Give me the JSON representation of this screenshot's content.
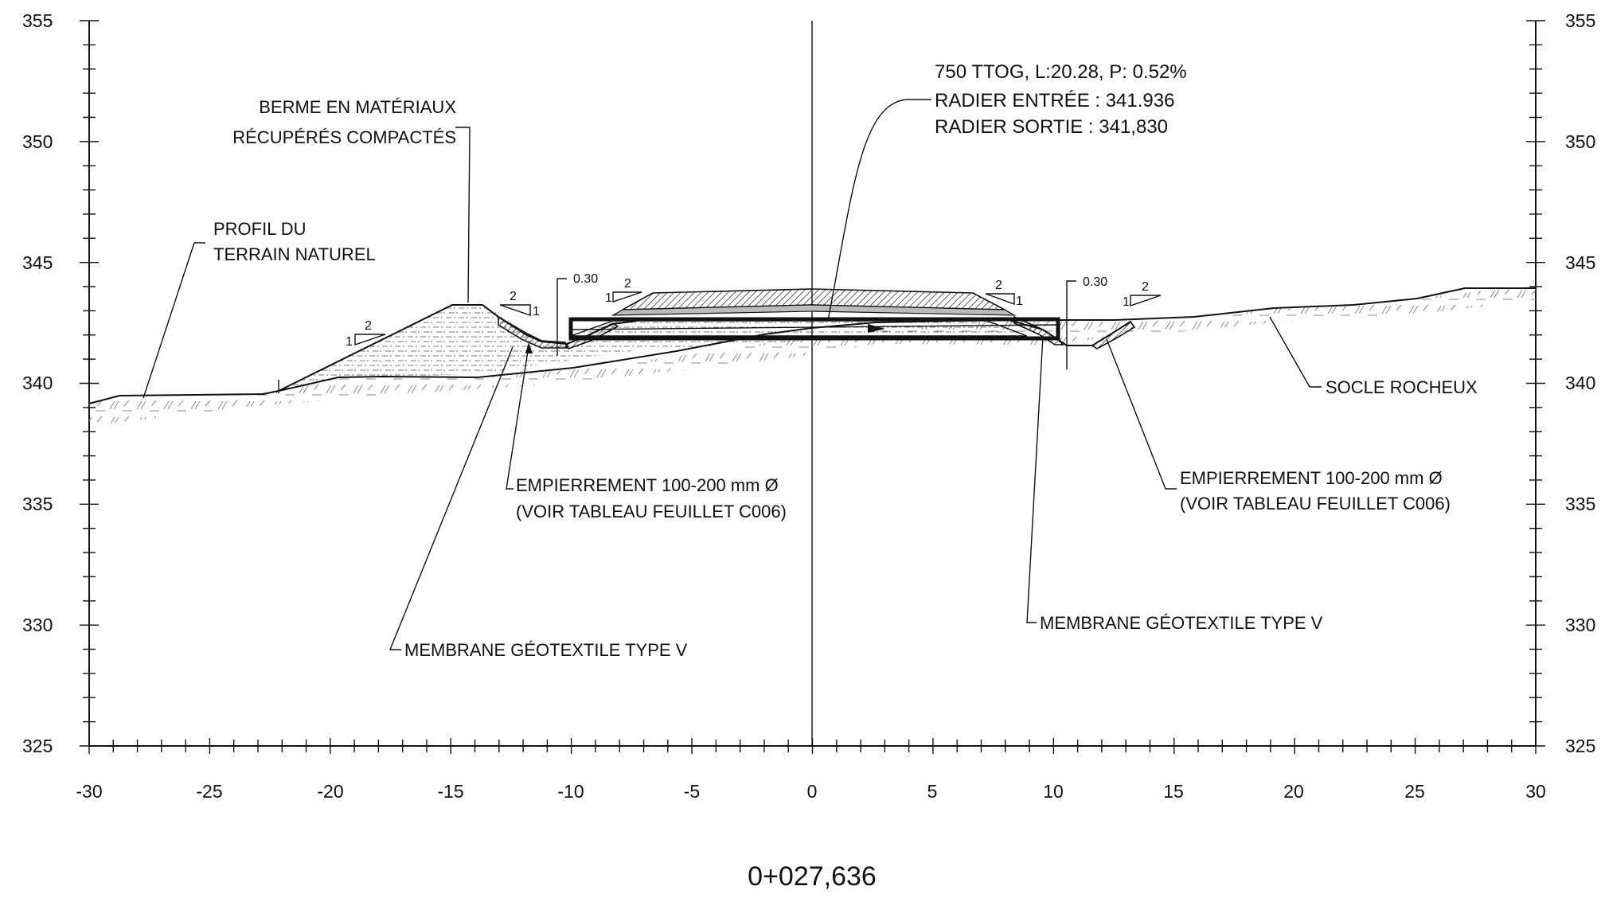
{
  "chart_data": {
    "type": "cross-section",
    "x_ticks": [
      -30,
      -25,
      -20,
      -15,
      -10,
      -5,
      0,
      5,
      10,
      15,
      20,
      25,
      30
    ],
    "y_ticks": [
      325,
      330,
      335,
      340,
      345,
      350,
      355
    ],
    "xlim": [
      -30,
      30
    ],
    "ylim": [
      325,
      355
    ],
    "station": "0+027,636",
    "culvert": {
      "line1": "750 TTOG, L:20.28, P: 0.52%",
      "line2": "RADIER ENTRÉE : 341.936",
      "line3": "RADIER SORTIE : 341,830"
    },
    "labels": {
      "berm_line1": "BERME EN MATÉRIAUX",
      "berm_line2": "RÉCUPÉRÉS COMPACTÉS",
      "terrain_line1": "PROFIL DU",
      "terrain_line2": "TERRAIN NATUREL",
      "rock": "SOCLE ROCHEUX",
      "riprap_left_line1": "EMPIERREMENT 100-200 mm Ø",
      "riprap_left_line2": "(VOIR TABLEAU FEUILLET C006)",
      "riprap_right_line1": "EMPIERREMENT 100-200 mm Ø",
      "riprap_right_line2": "(VOIR TABLEAU FEUILLET C006)",
      "membrane_left": "MEMBRANE GÉOTEXTILE TYPE V",
      "membrane_right": "MEMBRANE GÉOTEXTILE TYPE V",
      "depth_left": "0.30",
      "depth_right": "0.30",
      "slope_run": "2",
      "slope_rise": "1"
    },
    "ground_profile": [
      [
        -30,
        339.2
      ],
      [
        -28.5,
        339.5
      ],
      [
        -24,
        339.6
      ],
      [
        -22,
        339.9
      ],
      [
        -20,
        340.1
      ],
      [
        -18,
        340.3
      ],
      [
        -14,
        340.4
      ],
      [
        -10,
        340.6
      ],
      [
        -8,
        340.8
      ],
      [
        -6,
        341.2
      ],
      [
        -4,
        341.6
      ],
      [
        -2,
        341.9
      ],
      [
        0,
        342.2
      ],
      [
        2,
        342.4
      ],
      [
        5,
        342.5
      ],
      [
        8,
        342.6
      ],
      [
        11,
        342.6
      ],
      [
        14,
        342.8
      ],
      [
        17,
        343.0
      ],
      [
        20,
        343.3
      ],
      [
        23,
        343.5
      ],
      [
        26,
        343.8
      ],
      [
        27.5,
        344.0
      ],
      [
        30,
        344.0
      ]
    ],
    "berm": [
      [
        -22,
        339.9
      ],
      [
        -15,
        343.2
      ],
      [
        -14,
        343.2
      ],
      [
        -13,
        342.7
      ]
    ],
    "road_top": [
      [
        -7,
        343.7
      ],
      [
        0,
        343.9
      ],
      [
        7,
        343.7
      ]
    ],
    "culvert_x": [
      -10,
      10
    ],
    "culvert_y": [
      341.9,
      342.7
    ]
  }
}
